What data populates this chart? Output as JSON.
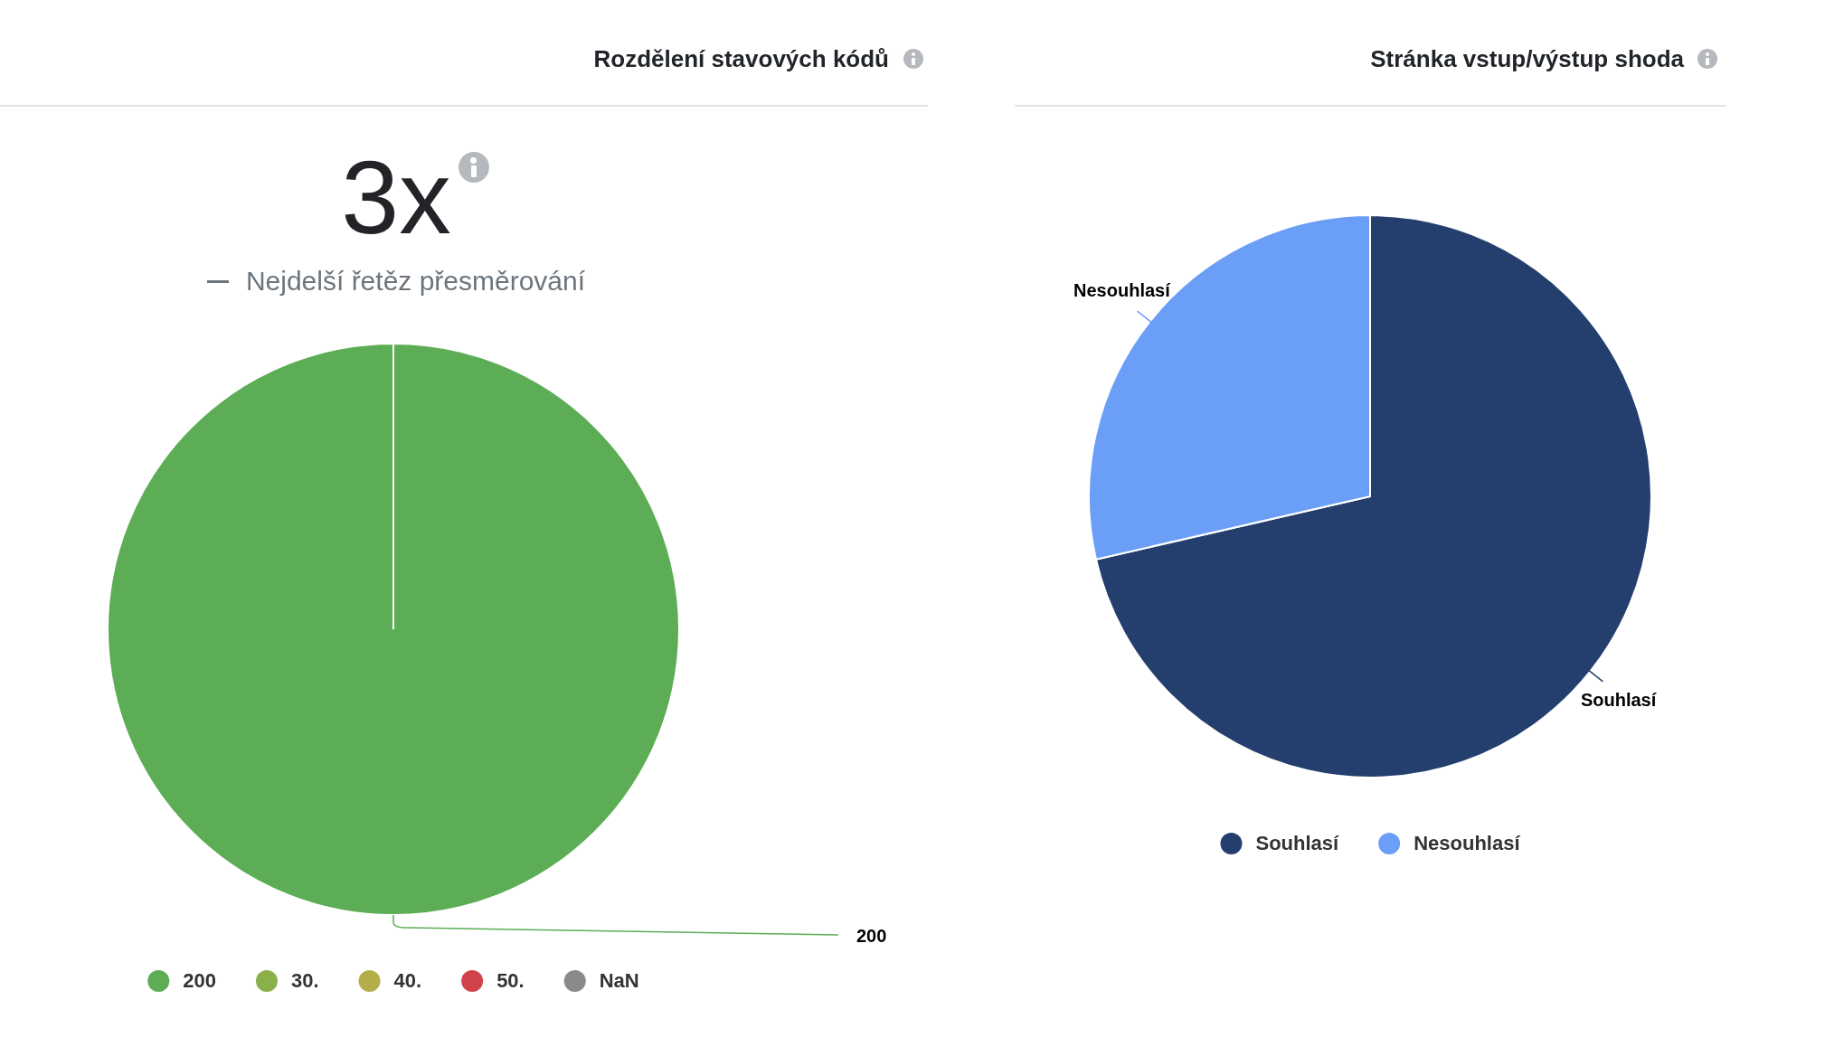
{
  "chart_data": [
    {
      "type": "pie",
      "title": "Rozdělení stavových kódů",
      "annotations": [
        "3x",
        "Nejdelší řetěz přesměrování"
      ],
      "categories": [
        "200",
        "30.",
        "40.",
        "50.",
        "NaN"
      ],
      "values": [
        100,
        0,
        0,
        0,
        0
      ],
      "colors": [
        "#5cad55",
        "#8bb04a",
        "#b3ae4a",
        "#d1424a",
        "#8a8a8a"
      ],
      "legend": "bottom"
    },
    {
      "type": "pie",
      "title": "Stránka vstup/výstup shoda",
      "categories": [
        "Souhlasí",
        "Nesouhlasí"
      ],
      "values": [
        71.4,
        28.6
      ],
      "colors": [
        "#243f6e",
        "#6b9ef6"
      ],
      "legend": "bottom"
    }
  ]
}
